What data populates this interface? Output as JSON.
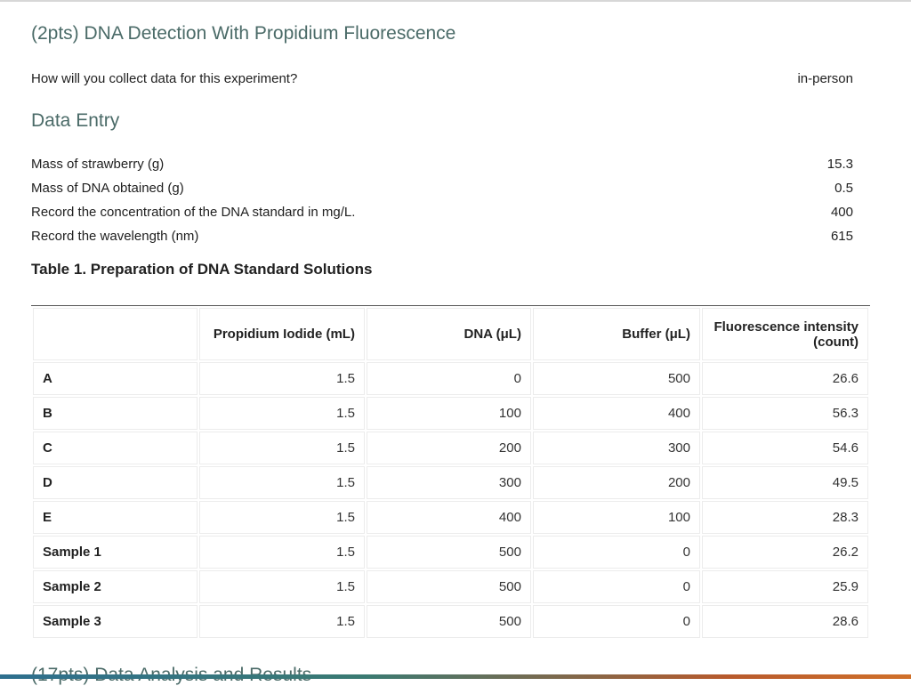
{
  "section": {
    "title": "(2pts) DNA Detection With Propidium Fluorescence"
  },
  "collection": {
    "question": "How will you collect data for this experiment?",
    "answer": "in-person"
  },
  "data_entry": {
    "title": "Data Entry",
    "fields": [
      {
        "label": "Mass of strawberry (g)",
        "value": "15.3"
      },
      {
        "label": "Mass of DNA obtained (g)",
        "value": "0.5"
      },
      {
        "label": "Record the concentration of the DNA standard in mg/L.",
        "value": "400"
      },
      {
        "label": "Record the wavelength (nm)",
        "value": "615"
      }
    ]
  },
  "table1": {
    "caption": "Table 1. Preparation of DNA Standard Solutions",
    "headers": [
      "",
      "Propidium Iodide (mL)",
      "DNA (μL)",
      "Buffer (μL)",
      "Fluorescence intensity (count)"
    ],
    "rows": [
      [
        "A",
        "1.5",
        "0",
        "500",
        "26.6"
      ],
      [
        "B",
        "1.5",
        "100",
        "400",
        "56.3"
      ],
      [
        "C",
        "1.5",
        "200",
        "300",
        "54.6"
      ],
      [
        "D",
        "1.5",
        "300",
        "200",
        "49.5"
      ],
      [
        "E",
        "1.5",
        "400",
        "100",
        "28.3"
      ],
      [
        "Sample 1",
        "1.5",
        "500",
        "0",
        "26.2"
      ],
      [
        "Sample 2",
        "1.5",
        "500",
        "0",
        "25.9"
      ],
      [
        "Sample 3",
        "1.5",
        "500",
        "0",
        "28.6"
      ]
    ]
  },
  "next_section": {
    "title": "(17pts) Data Analysis and Results"
  },
  "colors": {
    "heading": "#4b6b68",
    "text": "#212121",
    "table_border": "#ececec"
  }
}
